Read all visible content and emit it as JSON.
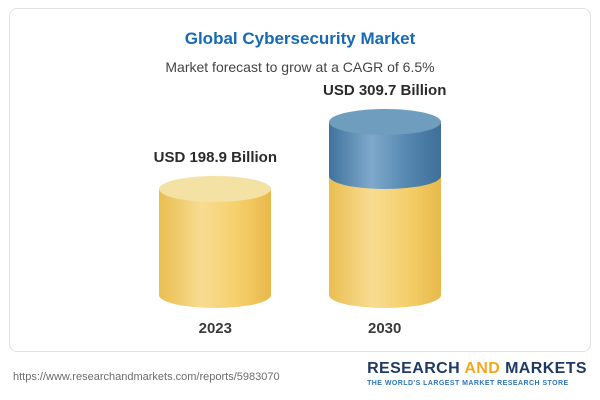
{
  "chart_data": {
    "type": "bar",
    "title": "Global Cybersecurity Market",
    "subtitle": "Market forecast to grow at a CAGR of 6.5%",
    "categories": [
      "2023",
      "2030"
    ],
    "values": [
      198.9,
      309.7
    ],
    "value_labels": [
      "USD 198.9 Billion",
      "USD 309.7 Billion"
    ],
    "unit": "USD Billion",
    "cagr": "6.5%",
    "legend": "none",
    "grid": false,
    "colors": {
      "base_segment": "#f5cf6b",
      "growth_segment": "#4c83ae",
      "title": "#1669b2"
    }
  },
  "footer": {
    "url": "https://www.researchandmarkets.com/reports/5983070",
    "logo": {
      "word1": "RESEARCH",
      "word2": "AND",
      "word3": "MARKETS",
      "tagline": "THE WORLD'S LARGEST MARKET RESEARCH STORE"
    }
  }
}
